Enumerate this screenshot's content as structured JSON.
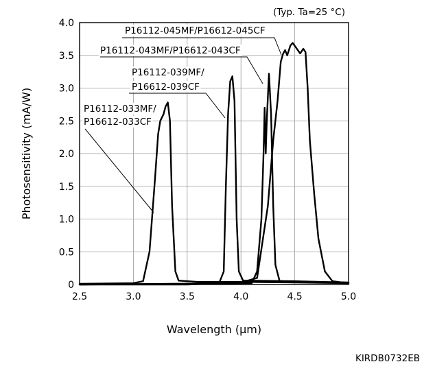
{
  "chart_data": {
    "type": "line",
    "condition_note": "(Typ. Ta=25 °C)",
    "xlabel": "Wavelength (µm)",
    "ylabel": "Photosensitivity (mA/W)",
    "figure_code": "KIRDB0732EB",
    "xlim": [
      2.5,
      5.0
    ],
    "ylim": [
      0,
      4.0
    ],
    "x_ticks": [
      "2.5",
      "3.0",
      "3.5",
      "4.0",
      "4.5",
      "5.0"
    ],
    "y_ticks": [
      "0",
      "0.5",
      "1.0",
      "1.5",
      "2.0",
      "2.5",
      "3.0",
      "3.5",
      "4.0"
    ],
    "grid": true,
    "series": [
      {
        "name": "P16112-033MF/P16612-033CF",
        "label_lines": [
          "P16112-033MF/",
          "P16612-033CF"
        ],
        "points": [
          [
            2.5,
            0.01
          ],
          [
            3.0,
            0.02
          ],
          [
            3.09,
            0.05
          ],
          [
            3.15,
            0.5
          ],
          [
            3.2,
            1.6
          ],
          [
            3.23,
            2.3
          ],
          [
            3.25,
            2.5
          ],
          [
            3.28,
            2.6
          ],
          [
            3.3,
            2.72
          ],
          [
            3.32,
            2.78
          ],
          [
            3.34,
            2.5
          ],
          [
            3.36,
            1.2
          ],
          [
            3.39,
            0.2
          ],
          [
            3.42,
            0.06
          ],
          [
            3.6,
            0.04
          ],
          [
            4.0,
            0.04
          ],
          [
            4.5,
            0.03
          ],
          [
            5.0,
            0.02
          ]
        ]
      },
      {
        "name": "P16112-039MF/P16612-039CF",
        "label_lines": [
          "P16112-039MF/",
          "P16612-039CF"
        ],
        "points": [
          [
            2.5,
            0.0
          ],
          [
            3.5,
            0.01
          ],
          [
            3.8,
            0.03
          ],
          [
            3.84,
            0.2
          ],
          [
            3.86,
            1.5
          ],
          [
            3.88,
            2.6
          ],
          [
            3.9,
            3.1
          ],
          [
            3.92,
            3.18
          ],
          [
            3.94,
            2.8
          ],
          [
            3.96,
            1.0
          ],
          [
            3.98,
            0.2
          ],
          [
            4.02,
            0.06
          ],
          [
            4.5,
            0.05
          ],
          [
            5.0,
            0.03
          ]
        ]
      },
      {
        "name": "P16112-043MF/P16612-043CF",
        "label_lines": [
          "P16112-043MF/P16612-043CF"
        ],
        "points": [
          [
            2.5,
            0.0
          ],
          [
            4.1,
            0.02
          ],
          [
            4.15,
            0.2
          ],
          [
            4.19,
            1.0
          ],
          [
            4.21,
            2.0
          ],
          [
            4.22,
            2.7
          ],
          [
            4.23,
            2.0
          ],
          [
            4.24,
            2.5
          ],
          [
            4.26,
            3.22
          ],
          [
            4.28,
            2.6
          ],
          [
            4.3,
            1.2
          ],
          [
            4.32,
            0.3
          ],
          [
            4.36,
            0.05
          ],
          [
            4.6,
            0.04
          ],
          [
            5.0,
            0.03
          ]
        ]
      },
      {
        "name": "P16112-045MF/P16612-045CF",
        "label_lines": [
          "P16112-045MF/P16612-045CF"
        ],
        "points": [
          [
            2.5,
            0.0
          ],
          [
            3.5,
            0.0
          ],
          [
            4.0,
            0.03
          ],
          [
            4.15,
            0.1
          ],
          [
            4.25,
            1.2
          ],
          [
            4.3,
            2.2
          ],
          [
            4.34,
            2.8
          ],
          [
            4.37,
            3.4
          ],
          [
            4.39,
            3.52
          ],
          [
            4.41,
            3.58
          ],
          [
            4.43,
            3.5
          ],
          [
            4.46,
            3.65
          ],
          [
            4.48,
            3.69
          ],
          [
            4.52,
            3.6
          ],
          [
            4.55,
            3.53
          ],
          [
            4.58,
            3.6
          ],
          [
            4.6,
            3.55
          ],
          [
            4.62,
            3.0
          ],
          [
            4.64,
            2.2
          ],
          [
            4.68,
            1.4
          ],
          [
            4.72,
            0.7
          ],
          [
            4.78,
            0.2
          ],
          [
            4.85,
            0.05
          ],
          [
            5.0,
            0.02
          ]
        ]
      }
    ]
  }
}
